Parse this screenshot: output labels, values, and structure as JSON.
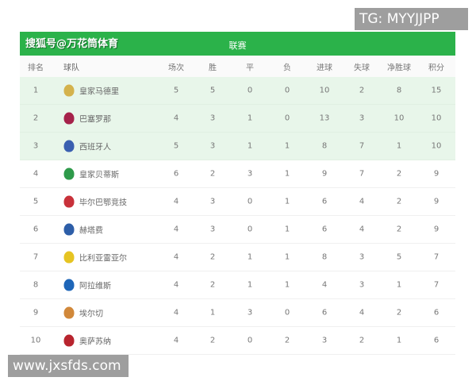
{
  "header": {
    "brand": "搜狐号@万花筒体育",
    "league": "联赛"
  },
  "columns": [
    "排名",
    "球队",
    "场次",
    "胜",
    "平",
    "负",
    "进球",
    "失球",
    "净胜球",
    "积分"
  ],
  "rows": [
    {
      "rank": "1",
      "team": "皇家马德里",
      "p": "5",
      "w": "5",
      "d": "0",
      "l": "0",
      "gf": "10",
      "ga": "2",
      "gd": "8",
      "pts": "15",
      "logo_color": "#d4b24c",
      "highlight": true
    },
    {
      "rank": "2",
      "team": "巴塞罗那",
      "p": "4",
      "w": "3",
      "d": "1",
      "l": "0",
      "gf": "13",
      "ga": "3",
      "gd": "10",
      "pts": "10",
      "logo_color": "#a5224a",
      "highlight": true
    },
    {
      "rank": "3",
      "team": "西班牙人",
      "p": "5",
      "w": "3",
      "d": "1",
      "l": "1",
      "gf": "8",
      "ga": "7",
      "gd": "1",
      "pts": "10",
      "logo_color": "#3a5fb0",
      "highlight": true
    },
    {
      "rank": "4",
      "team": "皇家贝蒂斯",
      "p": "6",
      "w": "2",
      "d": "3",
      "l": "1",
      "gf": "9",
      "ga": "7",
      "gd": "2",
      "pts": "9",
      "logo_color": "#2e9a4a",
      "highlight": false
    },
    {
      "rank": "5",
      "team": "毕尔巴鄂竞技",
      "p": "4",
      "w": "3",
      "d": "0",
      "l": "1",
      "gf": "6",
      "ga": "4",
      "gd": "2",
      "pts": "9",
      "logo_color": "#c8313a",
      "highlight": false
    },
    {
      "rank": "6",
      "team": "赫塔费",
      "p": "4",
      "w": "3",
      "d": "0",
      "l": "1",
      "gf": "6",
      "ga": "4",
      "gd": "2",
      "pts": "9",
      "logo_color": "#2d5ea8",
      "highlight": false
    },
    {
      "rank": "7",
      "team": "比利亚雷亚尔",
      "p": "4",
      "w": "2",
      "d": "1",
      "l": "1",
      "gf": "8",
      "ga": "3",
      "gd": "5",
      "pts": "7",
      "logo_color": "#e6c422",
      "highlight": false
    },
    {
      "rank": "8",
      "team": "阿拉维斯",
      "p": "4",
      "w": "2",
      "d": "1",
      "l": "1",
      "gf": "4",
      "ga": "3",
      "gd": "1",
      "pts": "7",
      "logo_color": "#1e66b8",
      "highlight": false
    },
    {
      "rank": "9",
      "team": "埃尔切",
      "p": "4",
      "w": "1",
      "d": "3",
      "l": "0",
      "gf": "6",
      "ga": "4",
      "gd": "2",
      "pts": "6",
      "logo_color": "#d1883a",
      "highlight": false
    },
    {
      "rank": "10",
      "team": "奥萨苏纳",
      "p": "4",
      "w": "2",
      "d": "0",
      "l": "2",
      "gf": "3",
      "ga": "2",
      "gd": "1",
      "pts": "6",
      "logo_color": "#b8242e",
      "highlight": false
    }
  ],
  "watermarks": {
    "top": "TG: MYYJJPP",
    "bottom": "www.jxsfds.com"
  }
}
